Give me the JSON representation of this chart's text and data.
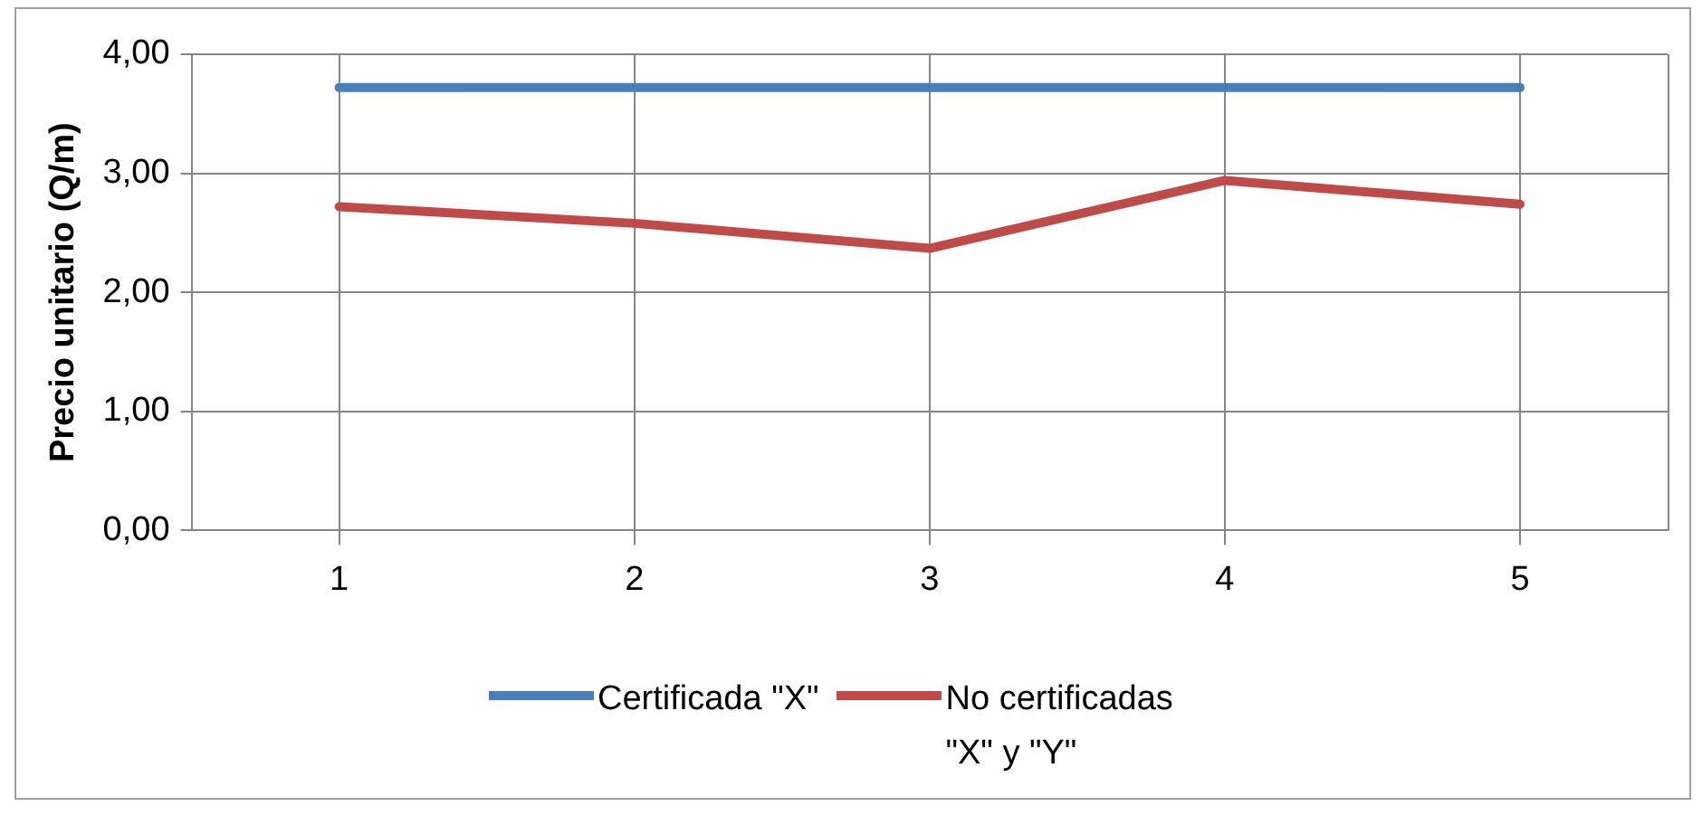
{
  "chart_data": {
    "type": "line",
    "ylabel": "Precio unitario (Q/m)",
    "categories": [
      "1",
      "2",
      "3",
      "4",
      "5"
    ],
    "series": [
      {
        "name": "Certificada \"X\"",
        "color": "#4a7ebb",
        "values": [
          3.72,
          3.72,
          3.72,
          3.72,
          3.72
        ]
      },
      {
        "name": "No certificadas \"X\" y \"Y\"",
        "color": "#be4b48",
        "values": [
          2.72,
          2.58,
          2.37,
          2.94,
          2.74
        ]
      }
    ],
    "ylim": [
      0,
      4
    ],
    "yticks": [
      {
        "value": 0,
        "label": "0,00"
      },
      {
        "value": 1,
        "label": "1,00"
      },
      {
        "value": 2,
        "label": "2,00"
      },
      {
        "value": 3,
        "label": "3,00"
      },
      {
        "value": 4,
        "label": "4,00"
      }
    ],
    "grid": true,
    "legend": "bottom",
    "marker": "none",
    "line_style": "solid"
  }
}
